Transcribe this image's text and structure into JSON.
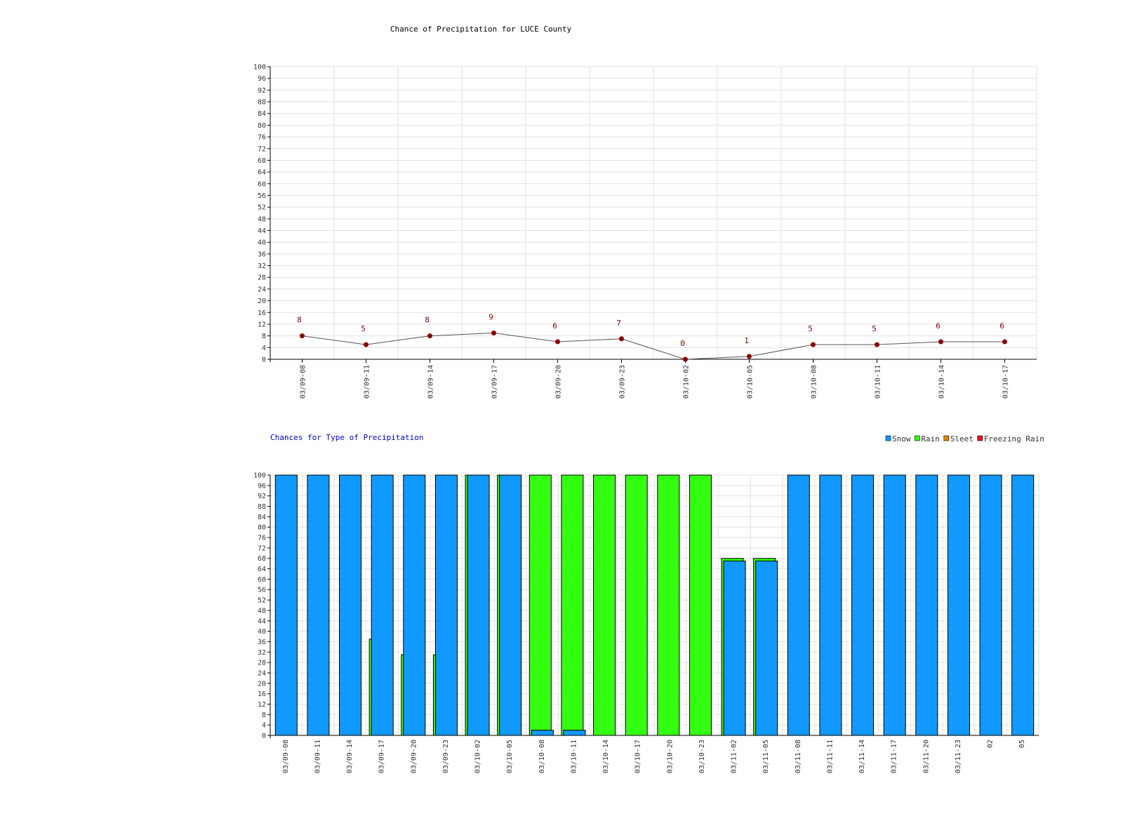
{
  "chart_data": [
    {
      "type": "line",
      "title": "Chance of Precipitation for LUCE County",
      "xlabel": "",
      "ylabel": "",
      "ylim": [
        0,
        100
      ],
      "yticks_step": 4,
      "grid": true,
      "categories": [
        "03/09-08",
        "03/09-11",
        "03/09-14",
        "03/09-17",
        "03/09-20",
        "03/09-23",
        "03/10-02",
        "03/10-05",
        "03/10-08",
        "03/10-11",
        "03/10-14",
        "03/10-17"
      ],
      "series": [
        {
          "values": [
            8,
            5,
            8,
            9,
            6,
            7,
            0,
            1,
            5,
            5,
            6,
            6
          ]
        }
      ],
      "colors": {
        "line": "#555555",
        "marker": "#8b0000",
        "label": "#8b0000"
      }
    },
    {
      "type": "bar",
      "title": "Chances for Type of Precipitation",
      "xlabel": "",
      "ylabel": "",
      "ylim": [
        0,
        100
      ],
      "yticks_step": 4,
      "grid": true,
      "legend_position": "top-right",
      "categories": [
        "03/09-08",
        "03/09-11",
        "03/09-14",
        "03/09-17",
        "03/09-20",
        "03/09-23",
        "03/10-02",
        "03/10-05",
        "03/10-08",
        "03/10-11",
        "03/10-14",
        "03/10-17",
        "03/10-20",
        "03/10-23",
        "03/11-02",
        "03/11-05",
        "03/11-08",
        "03/11-11",
        "03/11-14",
        "03/11-17",
        "03/11-20",
        "03/11-23",
        "02",
        "05"
      ],
      "series": [
        {
          "name": "Snow",
          "color": "#1199ff",
          "values": [
            100,
            100,
            100,
            100,
            100,
            100,
            100,
            100,
            2,
            2,
            0,
            0,
            0,
            0,
            67,
            67,
            100,
            100,
            100,
            100,
            100,
            100,
            100,
            100
          ]
        },
        {
          "name": "Rain",
          "color": "#33ff11",
          "values": [
            0,
            0,
            0,
            37,
            31,
            31,
            100,
            100,
            100,
            100,
            100,
            100,
            100,
            100,
            68,
            68,
            0,
            0,
            0,
            0,
            0,
            0,
            0,
            0
          ]
        },
        {
          "name": "Sleet",
          "color": "#dd8800",
          "values": [
            0,
            0,
            0,
            0,
            0,
            0,
            0,
            0,
            0,
            0,
            0,
            0,
            0,
            0,
            0,
            0,
            0,
            0,
            0,
            0,
            0,
            0,
            0,
            0
          ]
        },
        {
          "name": "Freezing Rain",
          "color": "#ee1122",
          "values": [
            0,
            0,
            0,
            0,
            0,
            0,
            0,
            0,
            0,
            0,
            0,
            0,
            0,
            0,
            0,
            0,
            0,
            0,
            0,
            0,
            0,
            0,
            0,
            0
          ]
        }
      ]
    }
  ]
}
